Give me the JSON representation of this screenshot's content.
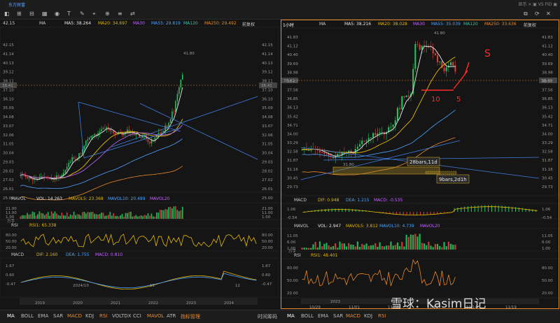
{
  "window": {
    "title": "东方财富",
    "right_text": "显示 ×  ▣  VS  FID  ▣"
  },
  "toolbar": {
    "left_icons": [
      "◧",
      "⊞",
      "⊟",
      "▦",
      "◉",
      "T",
      "✎",
      "⌖",
      "⊕",
      "≡",
      "⇄"
    ],
    "right_icons": [
      "⧉",
      "⟳",
      "✕"
    ]
  },
  "left_pane": {
    "ma_header": {
      "label": "MA",
      "ma5": "MA5: 38.264",
      "ma20": "MA20: 34.697",
      "ma30": "MA30",
      "ma55": "MA55: 29.819",
      "ma120": "MA120",
      "ma250": "MA250: 29.492",
      "adjust": "前复权"
    },
    "price_axis": [
      "42.15",
      "41.14",
      "40.13",
      "39.12",
      "38.11",
      "37.10",
      "36.10",
      "35.09",
      "34.08",
      "33.07",
      "32.06",
      "31.05",
      "30.04",
      "29.03",
      "28.02",
      "27.02",
      "26.01",
      "25.00"
    ],
    "current_price": "38.41",
    "high_label": "41.80",
    "low_label": "24.88",
    "vol_header": {
      "label": "MAVOL",
      "vol": "VOL: 14.263",
      "mavol5": "MAVOL5: 23.368",
      "mavol10": "MAVOL10: 20.489",
      "mavol20": "MAVOL20"
    },
    "vol_axis": [
      "21.00",
      "11.00",
      "1.00",
      "万手"
    ],
    "rsi_header": {
      "label": "RSI",
      "rsi1": "RSI1: 65.338"
    },
    "rsi_axis": [
      "80.00",
      "50.00",
      "20.00"
    ],
    "macd_header": {
      "label": "MACD",
      "dif": "DIF: 2.160",
      "dea": "DEA: 1.755",
      "macd": "MACD: 0.810"
    },
    "macd_axis": [
      "1.67",
      "0.60",
      "-0.47"
    ],
    "date_labels": [
      "2024/10",
      "11",
      "12"
    ],
    "overview_years": [
      "2019",
      "2020",
      "2021",
      "2022",
      "2023",
      "2024"
    ]
  },
  "right_pane": {
    "ma_header": {
      "period": "1小时",
      "label": "MA",
      "ma5": "MA5: 38.216",
      "ma20": "MA20: 38.028",
      "ma30": "MA30",
      "ma55": "MA55: 35.039",
      "ma120": "MA120",
      "ma250": "MA250: 33.636",
      "adjust": "前复权"
    },
    "price_axis": [
      "41.83",
      "41.12",
      "40.40",
      "39.69",
      "38.98",
      "38.27",
      "37.56",
      "36.85",
      "36.13",
      "35.42",
      "34.71",
      "34.00",
      "33.29",
      "32.58",
      "31.87",
      "31.16",
      "30.45",
      "29.73"
    ],
    "current_price": "38.41",
    "high_label": "41.80",
    "low_label": "31.80",
    "annotations": {
      "box1": "28bars,11d",
      "box2": "9bars,2d1h",
      "hand_s": "S",
      "hand_10": "10",
      "hand_5": "5"
    },
    "macd_header": {
      "label": "MACD",
      "dif": "DIF: 0.948",
      "dea": "DEA: 1.215",
      "macd": "MACD: -0.535"
    },
    "macd_axis": [
      "1.06",
      "-0.54"
    ],
    "vol_header": {
      "label": "MAVOL",
      "vol": "VOL: 2.947",
      "mavol5": "MAVOL5: 3.812",
      "mavol10": "MAVOL10: 4.739",
      "mavol20": "MAVOL20"
    },
    "vol_axis": [
      "11.05",
      "6.00",
      "1.00",
      "万手"
    ],
    "rsi_header": {
      "label": "RSI",
      "rsi1": "RSI1: 48.401"
    },
    "rsi_axis": [
      "80.00",
      "50.00",
      "20.00"
    ],
    "date_labels": [
      "10/29",
      "11/01",
      "11/06",
      "11/11",
      "11/14",
      "11/19"
    ],
    "overview_year": "2023"
  },
  "bottom_tabs": [
    "MA",
    "BOLL",
    "EMA",
    "SAR",
    "MACD",
    "KDJ",
    "RSI",
    "VOLTDX",
    "CCI",
    "MAVOL",
    "ATR",
    "指标管理"
  ],
  "bottom_right": [
    "时间",
    "筹码"
  ],
  "watermark": "雪球：Kasim日记",
  "colors": {
    "up": "#22c55e",
    "down": "#e03d3d",
    "ma5": "#e8e8e8",
    "ma20": "#e6b800",
    "ma55": "#4da3ff",
    "ma250": "#e8892b",
    "highlight": "#e8892b"
  }
}
